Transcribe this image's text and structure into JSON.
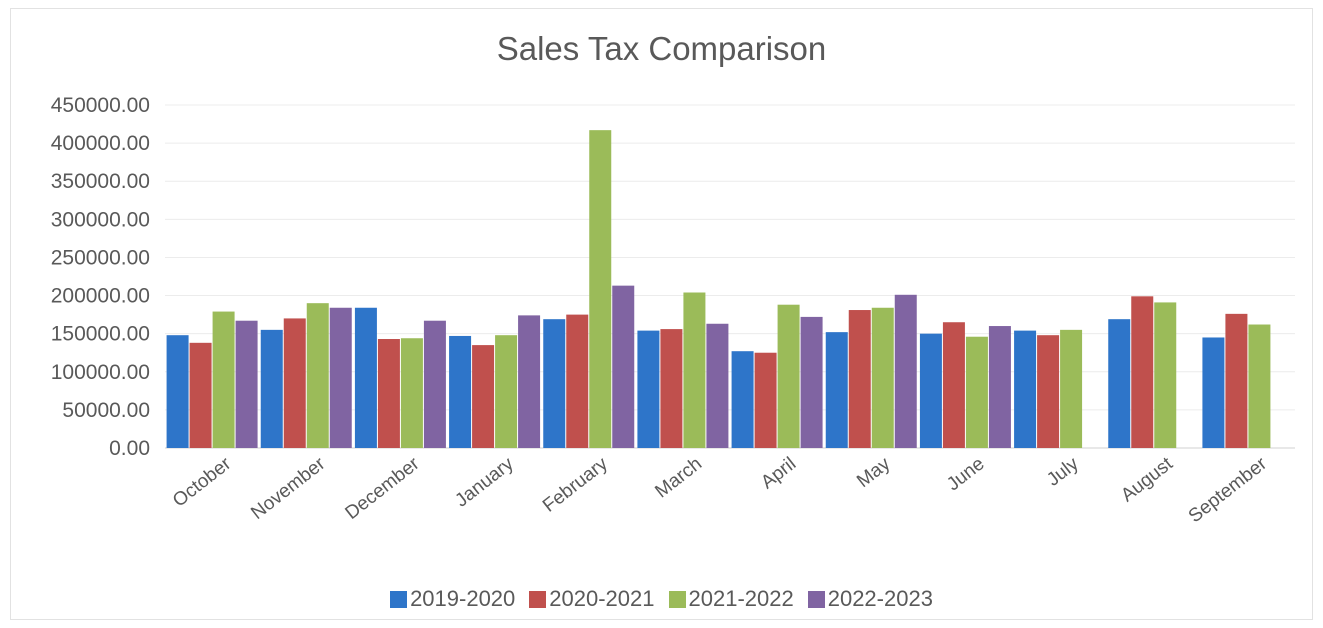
{
  "chart_data": {
    "type": "bar",
    "title": "Sales Tax Comparison",
    "xlabel": "",
    "ylabel": "",
    "ylim": [
      0,
      450000
    ],
    "yticks": [
      "0.00",
      "50000.00",
      "100000.00",
      "150000.00",
      "200000.00",
      "250000.00",
      "300000.00",
      "350000.00",
      "400000.00",
      "450000.00"
    ],
    "grid": true,
    "legend_position": "bottom",
    "categories": [
      "October",
      "November",
      "December",
      "January",
      "February",
      "March",
      "April",
      "May",
      "June",
      "July",
      "August",
      "September"
    ],
    "series": [
      {
        "name": "2019-2020",
        "color": "#2e75c9",
        "values": [
          148000,
          155000,
          184000,
          147000,
          169000,
          154000,
          127000,
          152000,
          150000,
          154000,
          169000,
          145000
        ]
      },
      {
        "name": "2020-2021",
        "color": "#c0504d",
        "values": [
          138000,
          170000,
          143000,
          135000,
          175000,
          156000,
          125000,
          181000,
          165000,
          148000,
          199000,
          176000
        ]
      },
      {
        "name": "2021-2022",
        "color": "#9bbb59",
        "values": [
          179000,
          190000,
          144000,
          148000,
          417000,
          204000,
          188000,
          184000,
          146000,
          155000,
          191000,
          162000
        ]
      },
      {
        "name": "2022-2023",
        "color": "#8064a2",
        "values": [
          167000,
          184000,
          167000,
          174000,
          213000,
          163000,
          172000,
          201000,
          160000,
          null,
          null,
          null
        ]
      }
    ]
  }
}
